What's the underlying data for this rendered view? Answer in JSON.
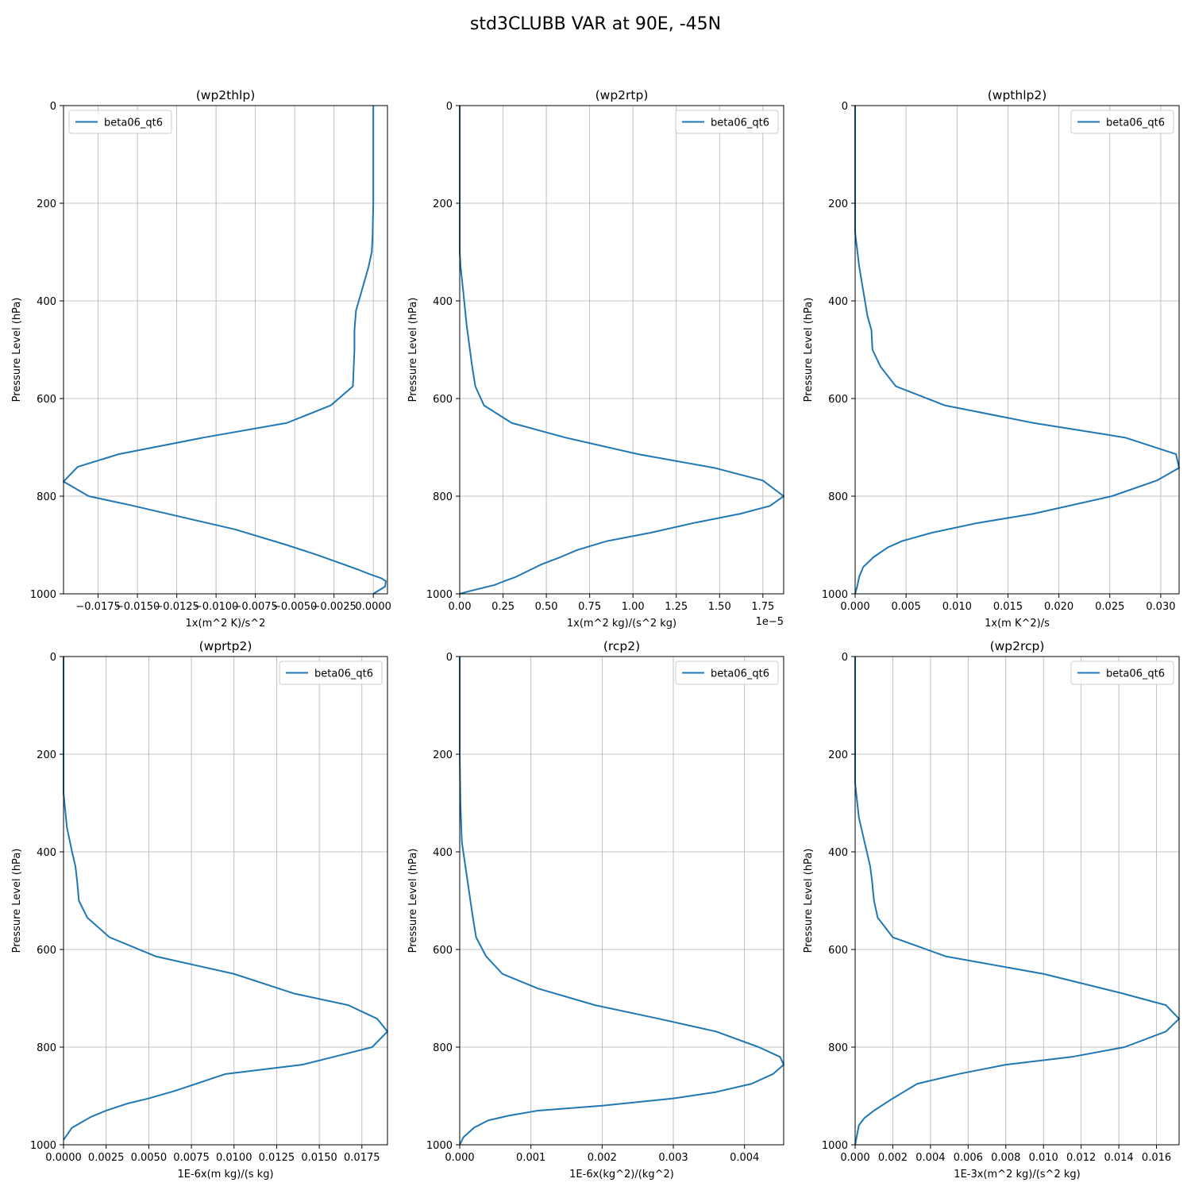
{
  "title": "std3CLUBB VAR at 90E, -45N",
  "chart_data": [
    {
      "type": "line",
      "title": "(wp2thlp)",
      "xlabel": "1x(m^2 K)/s^2",
      "ylabel": "Pressure Level (hPa)",
      "xlim": [
        -0.0197,
        0.0009
      ],
      "ylim": [
        1000,
        0
      ],
      "xticks": [
        -0.0175,
        -0.015,
        -0.0125,
        -0.01,
        -0.0075,
        -0.005,
        -0.0025,
        0.0
      ],
      "xtick_labels": [
        "−0.0175",
        "−0.0150",
        "−0.0125",
        "−0.0100",
        "−0.0075",
        "−0.0050",
        "−0.0025",
        "0.0000"
      ],
      "yticks": [
        0,
        200,
        400,
        600,
        800,
        1000
      ],
      "ytick_labels": [
        "0",
        "200",
        "400",
        "600",
        "800",
        "1000"
      ],
      "offset_label": "",
      "grid": true,
      "legend_position": "upper left",
      "series": [
        {
          "name": "beta06_qt6",
          "color": "#1f77b4",
          "x": [
            0,
            0,
            0,
            -5e-05,
            -0.0001,
            -0.0003,
            -0.0007,
            -0.0011,
            -0.0012,
            -0.0012,
            -0.0013,
            -0.0027,
            -0.0055,
            -0.0108,
            -0.0162,
            -0.0188,
            -0.0197,
            -0.0181,
            -0.0155,
            -0.0088,
            -0.0055,
            -0.0036,
            -0.0022,
            -0.001,
            -0.0002,
            0.0005,
            0.0008,
            0.00075,
            0
          ],
          "y": [
            0,
            100,
            200,
            270,
            300,
            330,
            375,
            420,
            460,
            500,
            575,
            614,
            650,
            680,
            714,
            740,
            770,
            800,
            818,
            868,
            900,
            920,
            936,
            950,
            960,
            968,
            974,
            985,
            1000
          ]
        }
      ]
    },
    {
      "type": "line",
      "title": "(wp2rtp)",
      "xlabel": "1x(m^2 kg)/(s^2 kg)",
      "ylabel": "Pressure Level (hPa)",
      "xlim": [
        0,
        1.87
      ],
      "ylim": [
        1000,
        0
      ],
      "xticks": [
        0,
        0.25,
        0.5,
        0.75,
        1.0,
        1.25,
        1.5,
        1.75
      ],
      "xtick_labels": [
        "0.00",
        "0.25",
        "0.50",
        "0.75",
        "1.00",
        "1.25",
        "1.50",
        "1.75"
      ],
      "yticks": [
        0,
        200,
        400,
        600,
        800,
        1000
      ],
      "ytick_labels": [
        "0",
        "200",
        "400",
        "600",
        "800",
        "1000"
      ],
      "offset_label": "1e−5",
      "grid": true,
      "legend_position": "upper right",
      "series": [
        {
          "name": "beta06_qt6",
          "color": "#1f77b4",
          "x": [
            0,
            0,
            0,
            0.005,
            0.02,
            0.04,
            0.07,
            0.09,
            0.14,
            0.3,
            0.61,
            1.03,
            1.47,
            1.75,
            1.87,
            1.79,
            1.62,
            1.35,
            1.1,
            0.85,
            0.68,
            0.58,
            0.47,
            0.32,
            0.25,
            0.2,
            0.05,
            0
          ],
          "y": [
            0,
            200,
            300,
            330,
            380,
            450,
            530,
            575,
            614,
            650,
            680,
            714,
            742,
            768,
            800,
            820,
            836,
            855,
            875,
            892,
            910,
            925,
            940,
            966,
            975,
            982,
            995,
            1000
          ]
        }
      ]
    },
    {
      "type": "line",
      "title": "(wpthlp2)",
      "xlabel": "1x(m K^2)/s",
      "ylabel": "Pressure Level (hPa)",
      "xlim": [
        0,
        0.0318
      ],
      "ylim": [
        1000,
        0
      ],
      "xticks": [
        0,
        0.005,
        0.01,
        0.015,
        0.02,
        0.025,
        0.03
      ],
      "xtick_labels": [
        "0.000",
        "0.005",
        "0.010",
        "0.015",
        "0.020",
        "0.025",
        "0.030"
      ],
      "yticks": [
        0,
        200,
        400,
        600,
        800,
        1000
      ],
      "ytick_labels": [
        "0",
        "200",
        "400",
        "600",
        "800",
        "1000"
      ],
      "offset_label": "",
      "grid": true,
      "legend_position": "upper right",
      "series": [
        {
          "name": "beta06_qt6",
          "color": "#1f77b4",
          "x": [
            0,
            0,
            0,
            0.0004,
            0.0008,
            0.0012,
            0.0016,
            0.0017,
            0.0025,
            0.004,
            0.0088,
            0.0175,
            0.0265,
            0.0315,
            0.0318,
            0.0296,
            0.0252,
            0.0175,
            0.012,
            0.0075,
            0.0046,
            0.0032,
            0.0018,
            0.0008,
            0.0004,
            0.0002,
            0
          ],
          "y": [
            0,
            200,
            260,
            330,
            380,
            430,
            460,
            500,
            535,
            575,
            614,
            650,
            680,
            714,
            742,
            768,
            800,
            836,
            855,
            875,
            892,
            905,
            925,
            945,
            965,
            985,
            1000
          ]
        }
      ]
    },
    {
      "type": "line",
      "title": "(wprtp2)",
      "xlabel": "1E-6x(m kg)/(s kg)",
      "ylabel": "Pressure Level (hPa)",
      "xlim": [
        0,
        0.019
      ],
      "ylim": [
        1000,
        0
      ],
      "xticks": [
        0,
        0.0025,
        0.005,
        0.0075,
        0.01,
        0.0125,
        0.015,
        0.0175
      ],
      "xtick_labels": [
        "0.0000",
        "0.0025",
        "0.0050",
        "0.0075",
        "0.0100",
        "0.0125",
        "0.0150",
        "0.0175"
      ],
      "yticks": [
        0,
        200,
        400,
        600,
        800,
        1000
      ],
      "ytick_labels": [
        "0",
        "200",
        "400",
        "600",
        "800",
        "1000"
      ],
      "offset_label": "",
      "grid": true,
      "legend_position": "upper right",
      "series": [
        {
          "name": "beta06_qt6",
          "color": "#1f77b4",
          "x": [
            0,
            0,
            0,
            0.0002,
            0.0005,
            0.0007,
            0.0008,
            0.0009,
            0.0014,
            0.0027,
            0.0054,
            0.01,
            0.0135,
            0.0167,
            0.0184,
            0.019,
            0.0181,
            0.0163,
            0.014,
            0.0095,
            0.0065,
            0.005,
            0.0038,
            0.0025,
            0.0016,
            0.001,
            0.0005,
            0
          ],
          "y": [
            0,
            200,
            280,
            350,
            400,
            430,
            460,
            500,
            535,
            575,
            614,
            650,
            690,
            714,
            742,
            768,
            800,
            816,
            836,
            855,
            890,
            905,
            915,
            930,
            943,
            955,
            965,
            990
          ]
        }
      ]
    },
    {
      "type": "line",
      "title": "(rcp2)",
      "xlabel": "1E-6x(kg^2)/(kg^2)",
      "ylabel": "Pressure Level (hPa)",
      "xlim": [
        0,
        0.00455
      ],
      "ylim": [
        1000,
        0
      ],
      "xticks": [
        0,
        0.001,
        0.002,
        0.003,
        0.004
      ],
      "xtick_labels": [
        "0.000",
        "0.001",
        "0.002",
        "0.003",
        "0.004"
      ],
      "yticks": [
        0,
        200,
        400,
        600,
        800,
        1000
      ],
      "ytick_labels": [
        "0",
        "200",
        "400",
        "600",
        "800",
        "1000"
      ],
      "offset_label": "",
      "grid": true,
      "legend_position": "upper right",
      "series": [
        {
          "name": "beta06_qt6",
          "color": "#1f77b4",
          "x": [
            0,
            0,
            1e-05,
            3e-05,
            8e-05,
            0.00013,
            0.00018,
            0.00023,
            0.00037,
            0.0006,
            0.0011,
            0.0019,
            0.0028,
            0.0036,
            0.0042,
            0.0045,
            0.00455,
            0.0044,
            0.0041,
            0.0036,
            0.003,
            0.002,
            0.0011,
            0.0007,
            0.0004,
            0.0002,
            5e-05,
            0
          ],
          "y": [
            0,
            200,
            300,
            380,
            430,
            480,
            530,
            575,
            614,
            650,
            680,
            714,
            742,
            768,
            800,
            820,
            836,
            855,
            875,
            892,
            905,
            920,
            930,
            940,
            950,
            965,
            985,
            1000
          ]
        }
      ]
    },
    {
      "type": "line",
      "title": "(wp2rcp)",
      "xlabel": "1E-3x(m^2 kg)/(s^2 kg)",
      "ylabel": "Pressure Level (hPa)",
      "xlim": [
        0,
        0.0172
      ],
      "ylim": [
        1000,
        0
      ],
      "xticks": [
        0,
        0.002,
        0.004,
        0.006,
        0.008,
        0.01,
        0.012,
        0.014,
        0.016
      ],
      "xtick_labels": [
        "0.000",
        "0.002",
        "0.004",
        "0.006",
        "0.008",
        "0.010",
        "0.012",
        "0.014",
        "0.016"
      ],
      "yticks": [
        0,
        200,
        400,
        600,
        800,
        1000
      ],
      "ytick_labels": [
        "0",
        "200",
        "400",
        "600",
        "800",
        "1000"
      ],
      "offset_label": "",
      "grid": true,
      "legend_position": "upper right",
      "series": [
        {
          "name": "beta06_qt6",
          "color": "#1f77b4",
          "x": [
            0,
            0,
            0,
            0.0002,
            0.0005,
            0.0008,
            0.0009,
            0.001,
            0.0012,
            0.002,
            0.0048,
            0.01,
            0.0142,
            0.0165,
            0.0172,
            0.0165,
            0.0143,
            0.0115,
            0.008,
            0.0055,
            0.0033,
            0.002,
            0.001,
            0.0005,
            0.0002,
            0.0001,
            0
          ],
          "y": [
            0,
            200,
            260,
            330,
            380,
            430,
            460,
            500,
            535,
            575,
            614,
            650,
            690,
            714,
            742,
            768,
            800,
            820,
            836,
            855,
            875,
            905,
            930,
            945,
            960,
            980,
            1000
          ]
        }
      ]
    }
  ]
}
